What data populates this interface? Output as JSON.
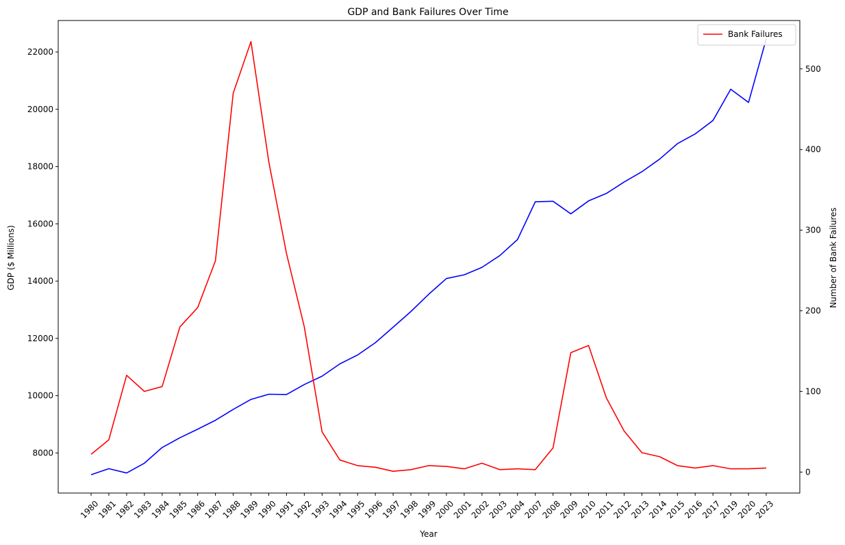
{
  "chart_data": {
    "type": "line",
    "title": "GDP and Bank Failures Over Time",
    "xlabel": "Year",
    "ylabel_left": "GDP ($ Millions)",
    "ylabel_right": "Number of Bank Failures",
    "categories": [
      "1980",
      "1981",
      "1982",
      "1983",
      "1984",
      "1985",
      "1986",
      "1987",
      "1988",
      "1989",
      "1990",
      "1991",
      "1992",
      "1993",
      "1994",
      "1995",
      "1996",
      "1997",
      "1998",
      "1999",
      "2000",
      "2001",
      "2002",
      "2003",
      "2004",
      "2007",
      "2008",
      "2009",
      "2010",
      "2011",
      "2012",
      "2013",
      "2014",
      "2015",
      "2016",
      "2017",
      "2019",
      "2020",
      "2023"
    ],
    "ylim_left": [
      6600,
      23100
    ],
    "ylim_right": [
      -26,
      560
    ],
    "yticks_left": [
      8000,
      10000,
      12000,
      14000,
      16000,
      18000,
      20000,
      22000
    ],
    "yticks_right": [
      0,
      100,
      200,
      300,
      400,
      500
    ],
    "grid": false,
    "legend_position": "top-right",
    "series": [
      {
        "name": "GDP",
        "axis": "left",
        "color": "#0000ff",
        "values": [
          7240,
          7450,
          7300,
          7640,
          8190,
          8530,
          8830,
          9140,
          9520,
          9870,
          10050,
          10040,
          10390,
          10680,
          11110,
          11420,
          11850,
          12390,
          12940,
          13540,
          14090,
          14220,
          14480,
          14890,
          15450,
          16770,
          16790,
          16350,
          16800,
          17060,
          17460,
          17820,
          18260,
          18800,
          19140,
          19610,
          20700,
          20240,
          22460
        ]
      },
      {
        "name": "Bank Failures",
        "axis": "right",
        "color": "#ff0000",
        "values": [
          22,
          40,
          120,
          100,
          106,
          180,
          204,
          262,
          470,
          534,
          385,
          271,
          180,
          50,
          15,
          8,
          6,
          1,
          3,
          8,
          7,
          4,
          11,
          3,
          4,
          3,
          30,
          148,
          157,
          92,
          51,
          24,
          19,
          8,
          5,
          8,
          4,
          4,
          5
        ]
      }
    ],
    "legend": [
      {
        "label": "Bank Failures",
        "color": "#ff0000"
      }
    ]
  }
}
